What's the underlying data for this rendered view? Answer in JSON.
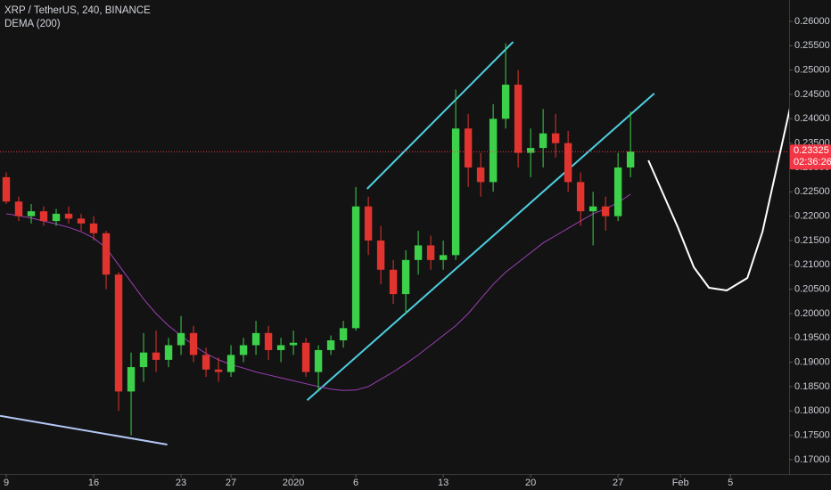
{
  "chart_data": {
    "type": "candlestick",
    "title": "XRP / TetherUS, 240, BINANCE",
    "indicator_name": "DEMA (200)",
    "x": [
      0,
      1,
      2,
      3,
      4,
      5,
      6,
      7,
      8,
      9,
      10,
      11,
      12,
      13,
      14,
      15,
      16,
      17,
      18,
      19,
      20,
      21,
      22,
      23,
      24,
      25,
      26,
      27,
      28,
      29,
      30,
      31,
      32,
      33,
      34,
      35,
      36,
      37,
      38,
      39,
      40,
      41,
      42,
      43,
      44,
      45,
      46,
      47,
      48,
      49,
      50
    ],
    "open": [
      0.228,
      0.223,
      0.22,
      0.221,
      0.219,
      0.2205,
      0.2195,
      0.2185,
      0.2165,
      0.208,
      0.184,
      0.189,
      0.192,
      0.1905,
      0.1935,
      0.196,
      0.1915,
      0.1885,
      0.188,
      0.1915,
      0.1935,
      0.196,
      0.1925,
      0.1935,
      0.194,
      0.188,
      0.1925,
      0.1945,
      0.197,
      0.222,
      0.215,
      0.209,
      0.204,
      0.211,
      0.214,
      0.211,
      0.212,
      0.238,
      0.23,
      0.227,
      0.24,
      0.247,
      0.233,
      0.234,
      0.237,
      0.235,
      0.227,
      0.221,
      0.222,
      0.22,
      0.23
    ],
    "high": [
      0.229,
      0.224,
      0.2225,
      0.222,
      0.2215,
      0.222,
      0.2205,
      0.22,
      0.217,
      0.2085,
      0.192,
      0.196,
      0.1965,
      0.195,
      0.1995,
      0.1975,
      0.193,
      0.191,
      0.1935,
      0.195,
      0.1985,
      0.1975,
      0.195,
      0.1965,
      0.195,
      0.1935,
      0.1955,
      0.1985,
      0.226,
      0.224,
      0.218,
      0.211,
      0.213,
      0.217,
      0.216,
      0.215,
      0.246,
      0.241,
      0.233,
      0.243,
      0.2555,
      0.25,
      0.238,
      0.242,
      0.241,
      0.2375,
      0.229,
      0.225,
      0.224,
      0.233,
      0.2415
    ],
    "low": [
      0.2225,
      0.219,
      0.2185,
      0.218,
      0.218,
      0.2185,
      0.217,
      0.215,
      0.205,
      0.18,
      0.175,
      0.186,
      0.188,
      0.189,
      0.1915,
      0.19,
      0.187,
      0.186,
      0.187,
      0.19,
      0.1915,
      0.1905,
      0.19,
      0.1915,
      0.187,
      0.184,
      0.1915,
      0.193,
      0.1965,
      0.212,
      0.206,
      0.202,
      0.2,
      0.208,
      0.209,
      0.209,
      0.211,
      0.226,
      0.224,
      0.225,
      0.238,
      0.23,
      0.228,
      0.23,
      0.232,
      0.225,
      0.218,
      0.214,
      0.217,
      0.219,
      0.228
    ],
    "close": [
      0.223,
      0.22,
      0.221,
      0.219,
      0.2205,
      0.2195,
      0.2185,
      0.2165,
      0.208,
      0.184,
      0.189,
      0.192,
      0.1905,
      0.1935,
      0.196,
      0.1915,
      0.1885,
      0.188,
      0.1915,
      0.1935,
      0.196,
      0.1925,
      0.1935,
      0.194,
      0.188,
      0.1925,
      0.1945,
      0.197,
      0.222,
      0.215,
      0.209,
      0.204,
      0.211,
      0.214,
      0.211,
      0.212,
      0.238,
      0.23,
      0.227,
      0.24,
      0.247,
      0.233,
      0.234,
      0.237,
      0.235,
      0.227,
      0.221,
      0.222,
      0.22,
      0.23,
      0.23325
    ],
    "up_color": "#3dd14b",
    "down_color": "#e2342f",
    "indicator": {
      "color": "#9c3fb5",
      "values": [
        0.2205,
        0.2201,
        0.2196,
        0.219,
        0.2184,
        0.2177,
        0.2168,
        0.2155,
        0.2135,
        0.21,
        0.2065,
        0.203,
        0.2,
        0.1975,
        0.1955,
        0.1935,
        0.1918,
        0.1905,
        0.1895,
        0.1888,
        0.188,
        0.1874,
        0.1868,
        0.1862,
        0.1856,
        0.185,
        0.1845,
        0.1842,
        0.1843,
        0.185,
        0.1865,
        0.188,
        0.1897,
        0.1915,
        0.1935,
        0.1955,
        0.1975,
        0.2,
        0.203,
        0.206,
        0.2085,
        0.2105,
        0.2125,
        0.2145,
        0.216,
        0.2175,
        0.219,
        0.2205,
        0.2215,
        0.2228,
        0.2245
      ]
    },
    "drawings": [
      {
        "color": "#4dd0e1",
        "x": [
          28.9,
          40.6
        ],
        "y": [
          0.2256,
          0.2558
        ]
      },
      {
        "color": "#4dd0e1",
        "x": [
          24.1,
          51.9
        ],
        "y": [
          0.1822,
          0.2452
        ]
      },
      {
        "color": "#b3c7f7",
        "x": [
          -0.5,
          12.9
        ],
        "y": [
          0.179,
          0.1731
        ]
      },
      {
        "color": "#ffffff",
        "x": [
          51.43,
          53.79,
          55.07,
          56.29,
          57.71,
          59.36,
          60.57,
          62.0,
          62.79
        ],
        "y": [
          0.23146,
          0.21774,
          0.2095,
          0.2053,
          0.20475,
          0.20731,
          0.21683,
          0.23329,
          0.24244
        ]
      }
    ],
    "last_price": {
      "value": 0.23325,
      "label": "0.23325",
      "color": "#f23645"
    },
    "countdown": "02:36:26",
    "xlim": [
      -0.5,
      62.7
    ],
    "ylim": [
      0.16706,
      0.26439
    ],
    "xticks": [
      {
        "value": 0,
        "label": "9"
      },
      {
        "value": 7,
        "label": "16"
      },
      {
        "value": 14,
        "label": "23"
      },
      {
        "value": 18,
        "label": "27"
      },
      {
        "value": 23,
        "label": "2020"
      },
      {
        "value": 28,
        "label": "6"
      },
      {
        "value": 35,
        "label": "13"
      },
      {
        "value": 42,
        "label": "20"
      },
      {
        "value": 49,
        "label": "27"
      },
      {
        "value": 54,
        "label": "Feb"
      },
      {
        "value": 58,
        "label": "5"
      }
    ],
    "yticks": [
      {
        "value": 0.17,
        "label": "0.17000"
      },
      {
        "value": 0.175,
        "label": "0.17500"
      },
      {
        "value": 0.18,
        "label": "0.18000"
      },
      {
        "value": 0.185,
        "label": "0.18500"
      },
      {
        "value": 0.19,
        "label": "0.19000"
      },
      {
        "value": 0.195,
        "label": "0.19500"
      },
      {
        "value": 0.2,
        "label": "0.20000"
      },
      {
        "value": 0.205,
        "label": "0.20500"
      },
      {
        "value": 0.21,
        "label": "0.21000"
      },
      {
        "value": 0.215,
        "label": "0.21500"
      },
      {
        "value": 0.22,
        "label": "0.22000"
      },
      {
        "value": 0.225,
        "label": "0.22500"
      },
      {
        "value": 0.23,
        "label": "0.23000"
      },
      {
        "value": 0.235,
        "label": "0.23500"
      },
      {
        "value": 0.24,
        "label": "0.24000"
      },
      {
        "value": 0.245,
        "label": "0.24500"
      },
      {
        "value": 0.25,
        "label": "0.25000"
      },
      {
        "value": 0.255,
        "label": "0.25500"
      },
      {
        "value": 0.26,
        "label": "0.26000"
      }
    ]
  }
}
